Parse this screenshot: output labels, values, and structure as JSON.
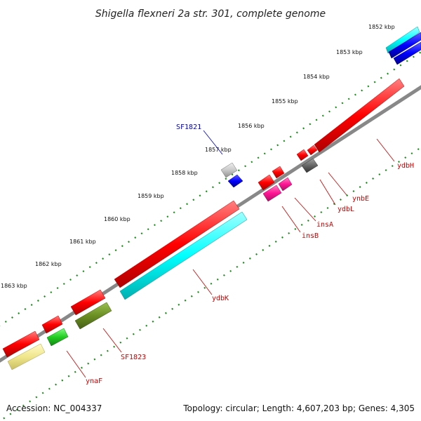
{
  "title": "Shigella flexneri 2a str. 301, complete genome",
  "footer": {
    "accession": "Accession: NC_004337",
    "topology": "Topology: circular; Length: 4,607,203 bp; Genes: 4,305"
  },
  "ticks": [
    "1852 kbp",
    "1853 kbp",
    "1854 kbp",
    "1855 kbp",
    "1856 kbp",
    "1857 kbp",
    "1858 kbp",
    "1859 kbp",
    "1860 kbp",
    "1861 kbp",
    "1862 kbp",
    "1863 kbp"
  ],
  "gene_labels": {
    "sf1821": "SF1821",
    "ydbH": "ydbH",
    "ynbE": "ynbE",
    "ydbL": "ydbL",
    "insA": "insA",
    "insB": "insB",
    "ydbK": "ydbK",
    "sf1823": "SF1823",
    "ynaF": "ynaF"
  },
  "colors": {
    "forward_gene": "#ff0000",
    "cds_cyan": "#00ffff",
    "cds_blue": "#0000ff",
    "cds_green": "#22cc22",
    "cds_olive": "#6b8e23",
    "cds_khaki": "#f0e68c",
    "cds_magenta": "#ff1493",
    "cds_gray": "#666666",
    "backbone": "#888888",
    "tick_green": "#1a8a1a",
    "label_red": "#cc0000",
    "label_blue": "#0000cc"
  }
}
